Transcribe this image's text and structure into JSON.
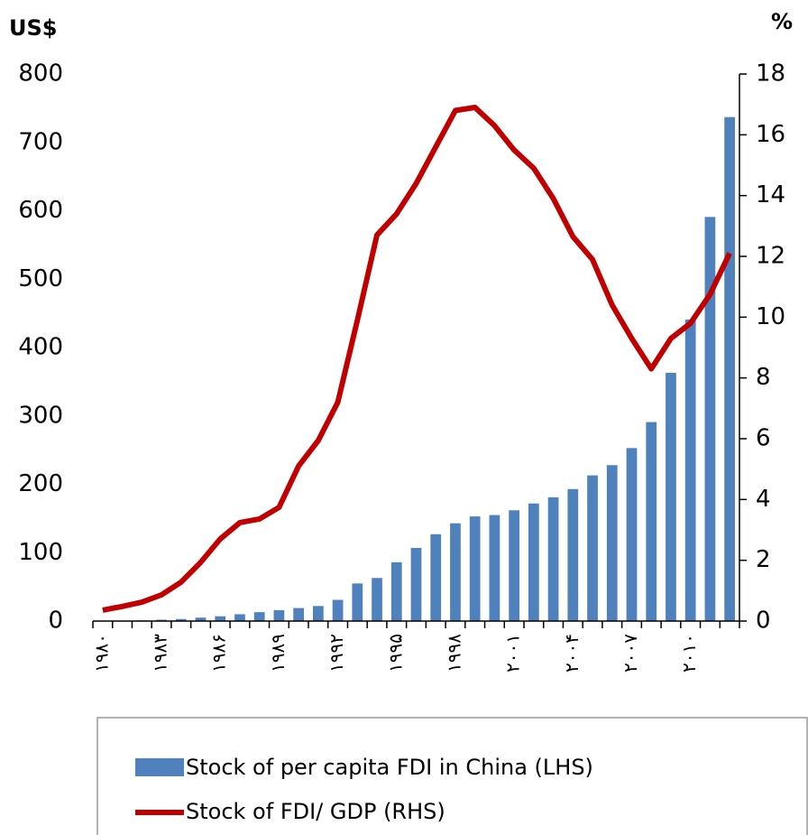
{
  "chart_data": {
    "type": "bar_line",
    "y_axis_title": "US$",
    "y2_axis_title": "%",
    "categories": [
      "۱۹۸۰",
      null,
      null,
      "۱۹۸۳",
      null,
      null,
      "۱۹۸۶",
      null,
      null,
      "۱۹۸۹",
      null,
      null,
      "۱۹۹۲",
      null,
      null,
      "۱۹۹۵",
      null,
      null,
      "۱۹۹۸",
      null,
      null,
      "۲۰۰۱",
      null,
      null,
      "۲۰۰۴",
      null,
      null,
      "۲۰۰۷",
      null,
      null,
      "۲۰۱۰",
      null,
      null
    ],
    "series": [
      {
        "name": "Stock of per capita FDI  in China (LHS)",
        "type": "bar",
        "color": "#4f81bd",
        "values": [
          0.3,
          0.5,
          1,
          2,
          3,
          5,
          7,
          10,
          13,
          16,
          19,
          22,
          31,
          55,
          63,
          86,
          107,
          127,
          143,
          153,
          155,
          162,
          172,
          181,
          193,
          213,
          228,
          253,
          291,
          363,
          441,
          591,
          737
        ]
      },
      {
        "name": "Stock of FDI/ GDP (RHS)",
        "type": "line",
        "axis": "y2",
        "color": "#c00000",
        "values": [
          0.36,
          0.48,
          0.62,
          0.86,
          1.28,
          1.93,
          2.7,
          3.24,
          3.36,
          3.74,
          5.1,
          5.94,
          7.2,
          9.9,
          12.7,
          13.4,
          14.4,
          15.6,
          16.8,
          16.9,
          16.3,
          15.5,
          14.9,
          13.9,
          12.65,
          11.9,
          10.4,
          9.3,
          8.3,
          9.3,
          9.8,
          10.75,
          12.1
        ]
      }
    ],
    "ylim": [
      0,
      800
    ],
    "yticks": [
      0,
      100,
      200,
      300,
      400,
      500,
      600,
      700,
      800
    ],
    "y2lim": [
      0,
      18
    ],
    "y2ticks": [
      0,
      2,
      4,
      6,
      8,
      10,
      12,
      14,
      16,
      18
    ]
  }
}
